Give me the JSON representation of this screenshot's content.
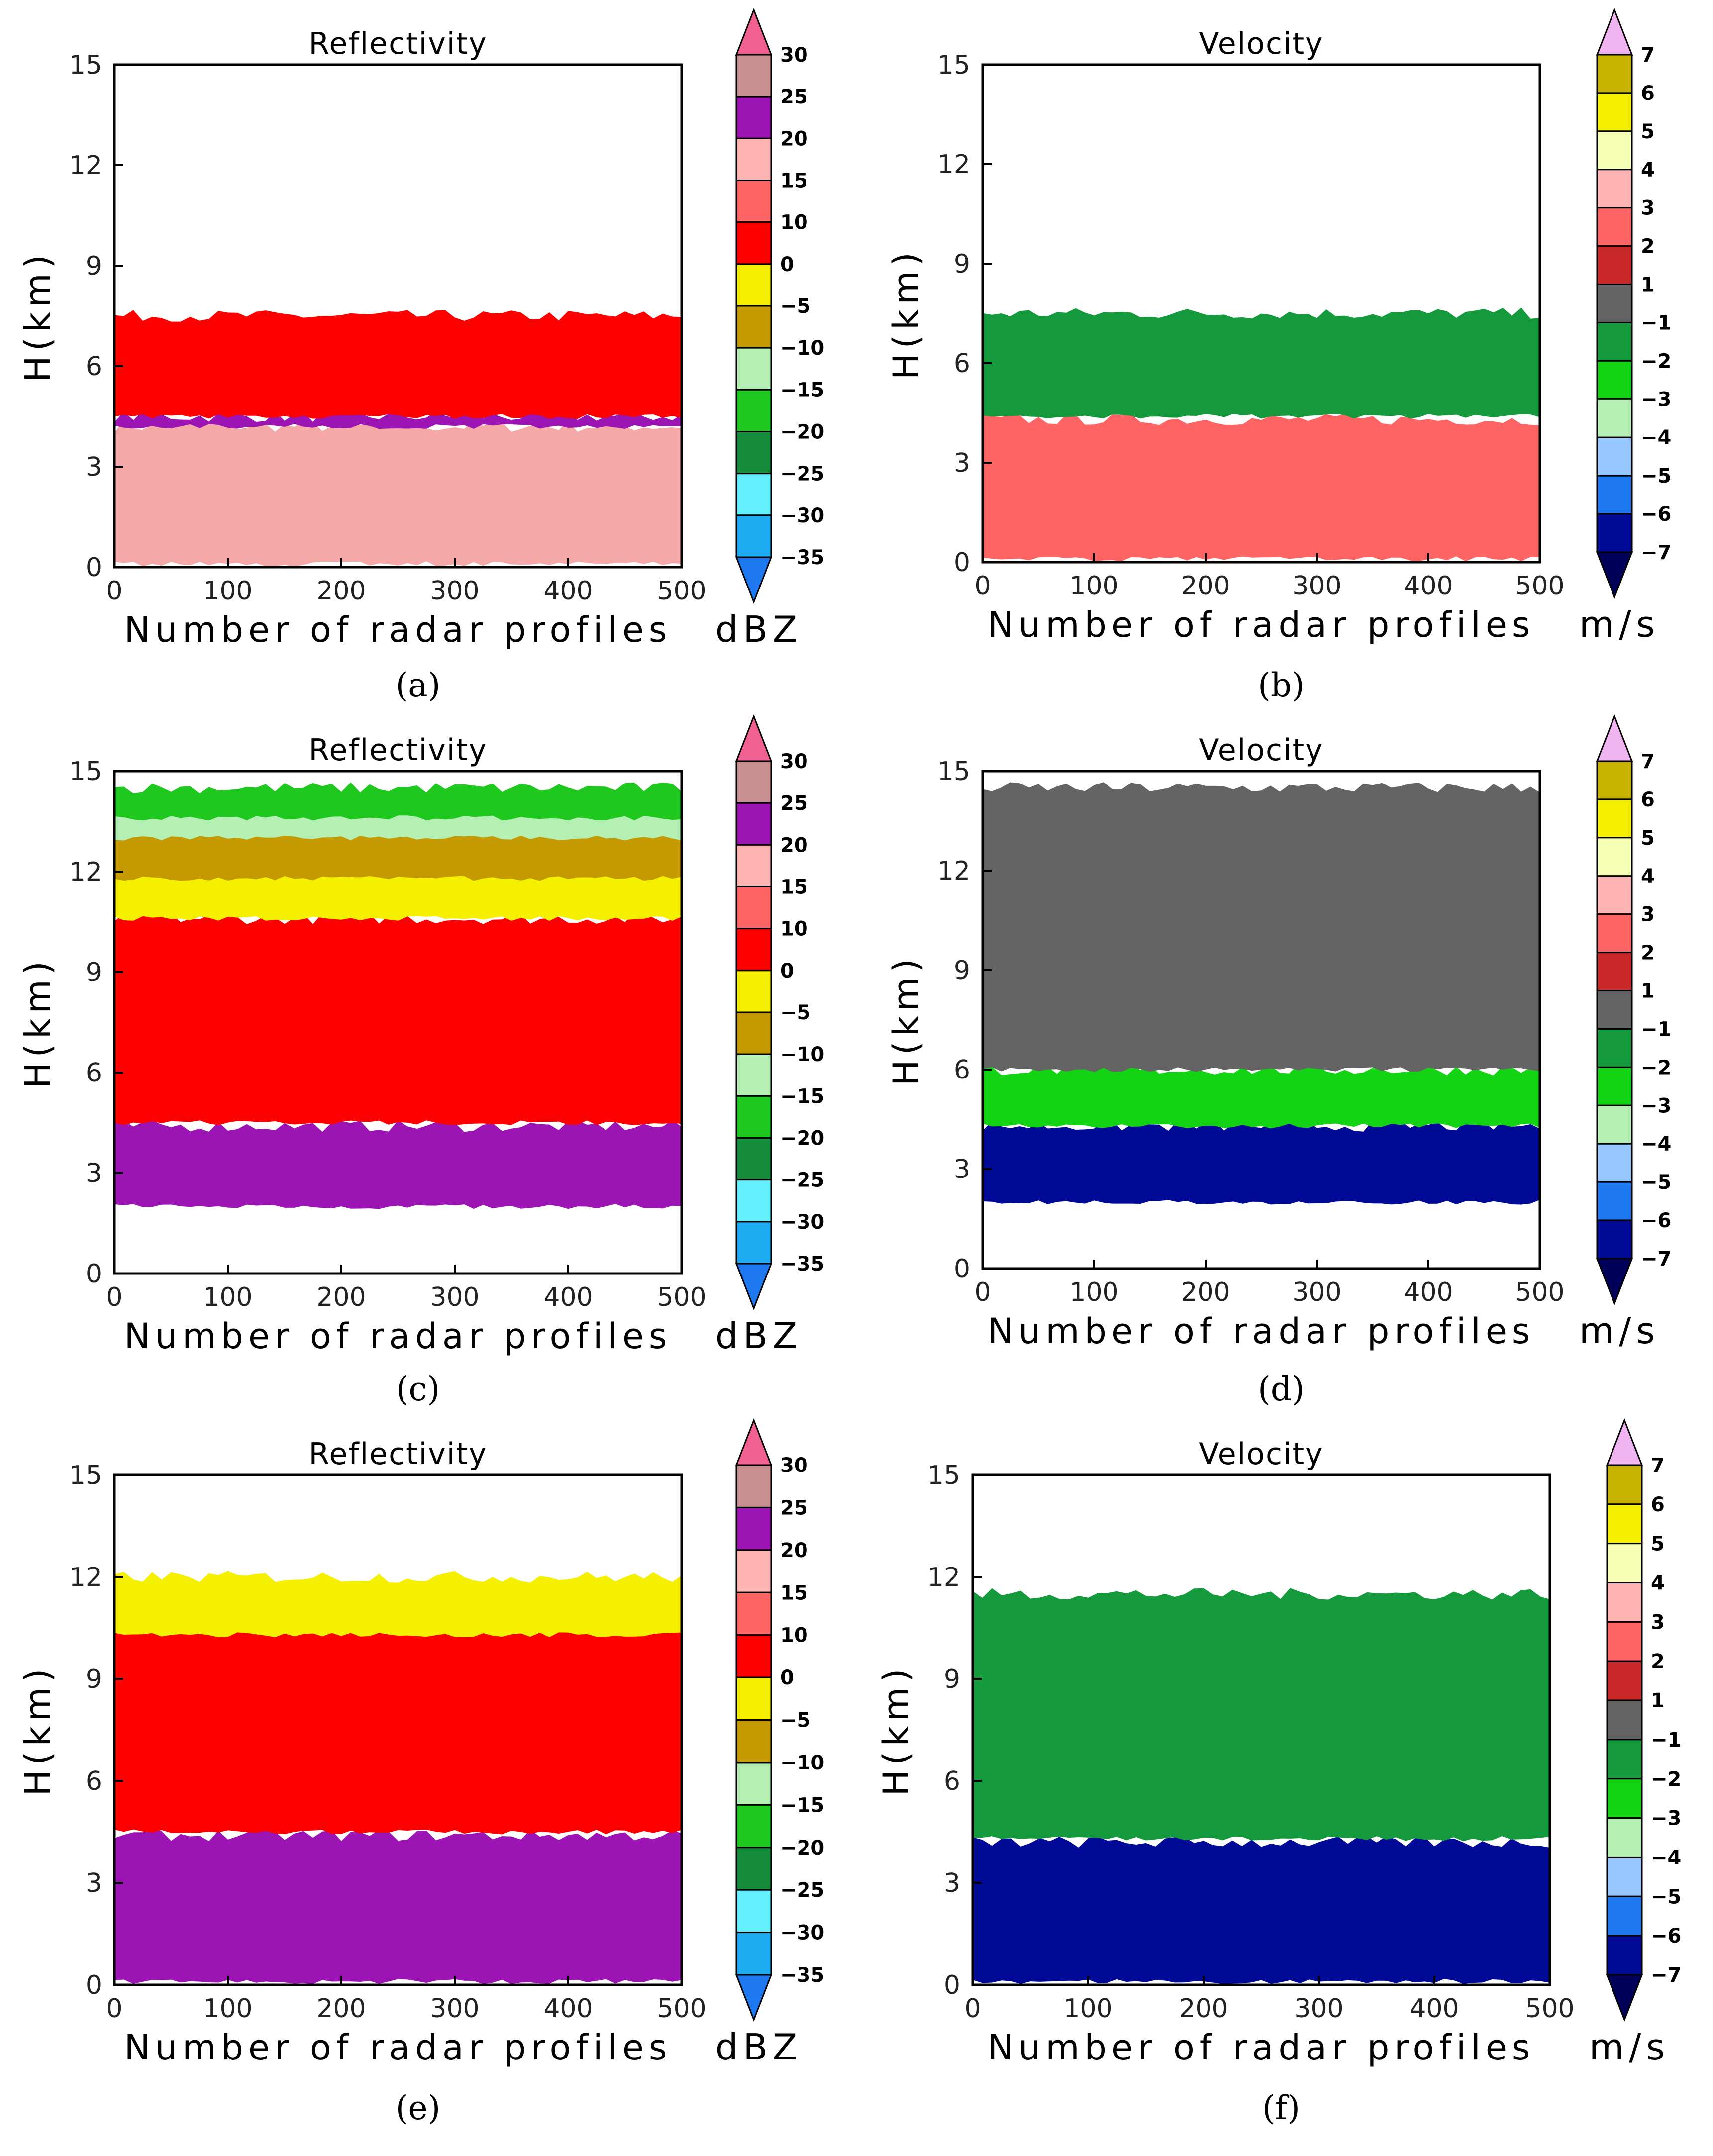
{
  "chart_data": [
    {
      "panel": "a",
      "type": "heatmap",
      "title": "Reflectivity",
      "xlabel": "Number of radar profiles",
      "ylabel": "H(km)",
      "xlim": [
        0,
        500
      ],
      "ylim": [
        0,
        15
      ],
      "xticks": [
        0,
        100,
        200,
        300,
        400,
        500
      ],
      "yticks": [
        0,
        3,
        6,
        9,
        12,
        15
      ],
      "colorbar_unit": "dBZ",
      "colorbar_labels": [
        "30",
        "25",
        "20",
        "15",
        "10",
        "0",
        "−5",
        "−10",
        "−15",
        "−20",
        "−25",
        "−30",
        "−35"
      ],
      "layers": [
        {
          "from_km": 4.5,
          "to_km": 7.5,
          "class": "0 to 10 dBZ",
          "color": "#ff0000"
        },
        {
          "from_km": 4.2,
          "to_km": 4.5,
          "class": "20 to 25 dBZ (bright band)",
          "color": "#9c14b4"
        },
        {
          "from_km": 0.1,
          "to_km": 4.2,
          "class": "10 to 20 dBZ",
          "color": "#f5a8a8"
        }
      ],
      "caption": "(a)"
    },
    {
      "panel": "b",
      "type": "heatmap",
      "title": "Velocity",
      "xlabel": "Number of radar profiles",
      "ylabel": "H(km)",
      "xlim": [
        0,
        500
      ],
      "ylim": [
        0,
        15
      ],
      "xticks": [
        0,
        100,
        200,
        300,
        400,
        500
      ],
      "yticks": [
        0,
        3,
        6,
        9,
        12,
        15
      ],
      "colorbar_unit": "m/s",
      "colorbar_labels": [
        "7",
        "6",
        "5",
        "4",
        "3",
        "2",
        "1",
        "−1",
        "−2",
        "−3",
        "−4",
        "−5",
        "−6",
        "−7"
      ],
      "layers": [
        {
          "from_km": 4.4,
          "to_km": 7.5,
          "class": "-2 to -1 m/s",
          "color": "#149a3c"
        },
        {
          "from_km": 0.1,
          "to_km": 4.3,
          "class": "2 to 3 m/s",
          "color": "#ff6464"
        }
      ],
      "caption": "(b)"
    },
    {
      "panel": "c",
      "type": "heatmap",
      "title": "Reflectivity",
      "xlabel": "Number of radar profiles",
      "ylabel": "H(km)",
      "xlim": [
        0,
        500
      ],
      "ylim": [
        0,
        15
      ],
      "xticks": [
        0,
        100,
        200,
        300,
        400,
        500
      ],
      "yticks": [
        0,
        3,
        6,
        9,
        12,
        15
      ],
      "colorbar_unit": "dBZ",
      "colorbar_labels": [
        "30",
        "25",
        "20",
        "15",
        "10",
        "0",
        "−5",
        "−10",
        "−15",
        "−20",
        "−25",
        "−30",
        "−35"
      ],
      "layers": [
        {
          "from_km": 13.6,
          "to_km": 14.5,
          "class": "-20 to -15 dBZ",
          "color": "#1ec81e"
        },
        {
          "from_km": 13.0,
          "to_km": 13.8,
          "class": "-15 to -10 dBZ",
          "color": "#b4f0b4"
        },
        {
          "from_km": 11.8,
          "to_km": 13.3,
          "class": "-10 to -5 dBZ",
          "color": "#c49a00"
        },
        {
          "from_km": 10.6,
          "to_km": 12.0,
          "class": "-5 to 0 dBZ",
          "color": "#f5f000"
        },
        {
          "from_km": 4.5,
          "to_km": 10.6,
          "class": "0 to 10 dBZ",
          "color": "#ff0000"
        },
        {
          "from_km": 2.0,
          "to_km": 4.4,
          "class": "20 to 30 dBZ",
          "color": "#9c14b4"
        }
      ],
      "caption": "(c)"
    },
    {
      "panel": "d",
      "type": "heatmap",
      "title": "Velocity",
      "xlabel": "Number of radar profiles",
      "ylabel": "H(km)",
      "xlim": [
        0,
        500
      ],
      "ylim": [
        0,
        15
      ],
      "xticks": [
        0,
        100,
        200,
        300,
        400,
        500
      ],
      "yticks": [
        0,
        3,
        6,
        9,
        12,
        15
      ],
      "colorbar_unit": "m/s",
      "colorbar_labels": [
        "7",
        "6",
        "5",
        "4",
        "3",
        "2",
        "1",
        "−1",
        "−2",
        "−3",
        "−4",
        "−5",
        "−6",
        "−7"
      ],
      "layers": [
        {
          "from_km": 6.0,
          "to_km": 14.5,
          "class": "-1 to 1 m/s and -2 to -1 m/s",
          "color": "#646464"
        },
        {
          "from_km": 4.3,
          "to_km": 6.0,
          "class": "-3 to -2 m/s",
          "color": "#14d214"
        },
        {
          "from_km": 2.0,
          "to_km": 4.3,
          "class": "-7 to -6 m/s",
          "color": "#000a96"
        }
      ],
      "caption": "(d)"
    },
    {
      "panel": "e",
      "type": "heatmap",
      "title": "Reflectivity",
      "xlabel": "Number of radar profiles",
      "ylabel": "H(km)",
      "xlim": [
        0,
        500
      ],
      "ylim": [
        0,
        15
      ],
      "xticks": [
        0,
        100,
        200,
        300,
        400,
        500
      ],
      "yticks": [
        0,
        3,
        6,
        9,
        12,
        15
      ],
      "colorbar_unit": "dBZ",
      "colorbar_labels": [
        "30",
        "25",
        "20",
        "15",
        "10",
        "0",
        "−5",
        "−10",
        "−15",
        "−20",
        "−25",
        "−30",
        "−35"
      ],
      "layers": [
        {
          "from_km": 10.3,
          "to_km": 12.0,
          "class": "-5 to 0 dBZ",
          "color": "#f5f000"
        },
        {
          "from_km": 4.5,
          "to_km": 10.8,
          "class": "0 to 10 dBZ",
          "color": "#ff0000"
        },
        {
          "from_km": 0.1,
          "to_km": 4.4,
          "class": "20 to 30 dBZ",
          "color": "#9c14b4"
        }
      ],
      "caption": "(e)"
    },
    {
      "panel": "f",
      "type": "heatmap",
      "title": "Velocity",
      "xlabel": "Number of radar profiles",
      "ylabel": "H(km)",
      "xlim": [
        0,
        500
      ],
      "ylim": [
        0,
        15
      ],
      "xticks": [
        0,
        100,
        200,
        300,
        400,
        500
      ],
      "yticks": [
        0,
        3,
        6,
        9,
        12,
        15
      ],
      "colorbar_unit": "m/s",
      "colorbar_labels": [
        "7",
        "6",
        "5",
        "4",
        "3",
        "2",
        "1",
        "−1",
        "−2",
        "−3",
        "−4",
        "−5",
        "−6",
        "−7"
      ],
      "layers": [
        {
          "from_km": 4.3,
          "to_km": 11.5,
          "class": "-2 to -1 m/s",
          "color": "#149a3c"
        },
        {
          "from_km": 0.1,
          "to_km": 4.2,
          "class": "-7 to -6 m/s",
          "color": "#000a96"
        }
      ],
      "caption": "(f)"
    }
  ],
  "palettes": {
    "reflectivity": [
      "#f06090",
      "#c89090",
      "#9c14b4",
      "#ffb4b4",
      "#ff6464",
      "#ff0000",
      "#f5f000",
      "#c49a00",
      "#b4f0b4",
      "#1ec81e",
      "#148c3c",
      "#64f0ff",
      "#1eaaf0",
      "#1e78f0"
    ],
    "velocity": [
      "#f0b4f0",
      "#c8b400",
      "#f5f000",
      "#f5ffb4",
      "#ffb4b4",
      "#ff6464",
      "#c82828",
      "#646464",
      "#149a3c",
      "#14d214",
      "#b4f0b4",
      "#96c8ff",
      "#1e78f0",
      "#000a96",
      "#00005a"
    ]
  }
}
